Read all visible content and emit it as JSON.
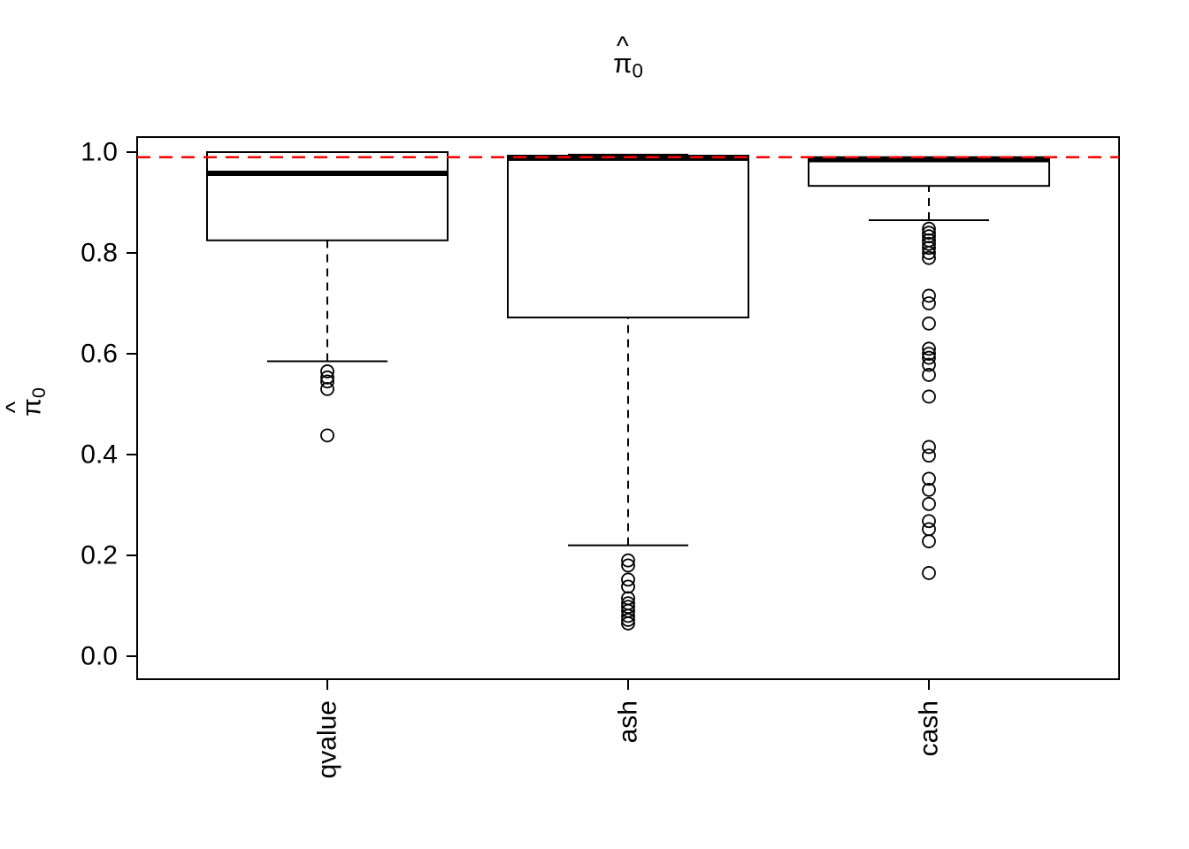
{
  "title": {
    "hat": "^",
    "symbol": "π",
    "subscript": "0"
  },
  "y_axis_label": {
    "hat": "^",
    "symbol": "π",
    "subscript": "0"
  },
  "chart_data": {
    "type": "boxplot",
    "title": "π̂₀",
    "ylabel": "π̂₀",
    "categories": [
      "qvalue",
      "ash",
      "cash"
    ],
    "y_ticks": [
      0.0,
      0.2,
      0.4,
      0.6,
      0.8,
      1.0
    ],
    "y_tick_labels": [
      "0.0",
      "0.2",
      "0.4",
      "0.6",
      "0.8",
      "1.0"
    ],
    "ylim": [
      -0.05,
      1.03
    ],
    "grid": false,
    "reference_line": {
      "value": 0.99,
      "color": "#ff0000",
      "style": "dashed"
    },
    "series": [
      {
        "name": "qvalue",
        "whisker_low": 0.585,
        "q1": 0.825,
        "median": 0.958,
        "q3": 1.0,
        "whisker_high": 1.0,
        "outliers": [
          0.565,
          0.553,
          0.545,
          0.53,
          0.438
        ]
      },
      {
        "name": "ash",
        "whisker_low": 0.22,
        "q1": 0.672,
        "median": 0.988,
        "q3": 0.993,
        "whisker_high": 0.995,
        "outliers": [
          0.19,
          0.18,
          0.152,
          0.138,
          0.115,
          0.105,
          0.098,
          0.09,
          0.08,
          0.072,
          0.065
        ]
      },
      {
        "name": "cash",
        "whisker_low": 0.865,
        "q1": 0.933,
        "median": 0.985,
        "q3": 0.99,
        "whisker_high": 0.99,
        "outliers": [
          0.848,
          0.84,
          0.833,
          0.825,
          0.818,
          0.81,
          0.8,
          0.79,
          0.715,
          0.7,
          0.66,
          0.61,
          0.6,
          0.592,
          0.578,
          0.558,
          0.515,
          0.415,
          0.398,
          0.352,
          0.33,
          0.302,
          0.268,
          0.252,
          0.228,
          0.165
        ]
      }
    ]
  }
}
